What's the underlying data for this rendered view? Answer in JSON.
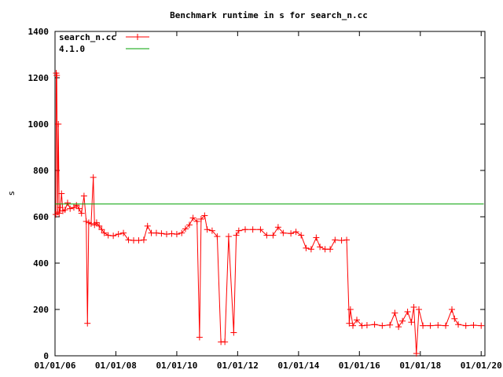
{
  "chart_data": {
    "type": "line",
    "title": "Benchmark runtime in s for search_n.cc",
    "xlabel": "",
    "ylabel": "s",
    "xlim": [
      "2006-01-01",
      "2020-02-15"
    ],
    "ylim": [
      0,
      1400
    ],
    "x_ticks": [
      "01/01/06",
      "01/01/08",
      "01/01/10",
      "01/01/12",
      "01/01/14",
      "01/01/16",
      "01/01/18",
      "01/01/20"
    ],
    "y_ticks": [
      "0",
      "200",
      "400",
      "600",
      "800",
      "1000",
      "1200",
      "1400"
    ],
    "legend": "top-left",
    "grid": false,
    "series": [
      {
        "name": "search_n.cc",
        "color": "#ff0000",
        "marker": "plus",
        "points": [
          [
            "2006-01-10",
            610
          ],
          [
            "2006-01-15",
            1220
          ],
          [
            "2006-01-22",
            1210
          ],
          [
            "2006-02-01",
            620
          ],
          [
            "2006-02-10",
            1000
          ],
          [
            "2006-02-20",
            615
          ],
          [
            "2006-03-05",
            640
          ],
          [
            "2006-03-20",
            700
          ],
          [
            "2006-04-05",
            625
          ],
          [
            "2006-05-01",
            630
          ],
          [
            "2006-06-01",
            660
          ],
          [
            "2006-07-01",
            635
          ],
          [
            "2006-08-15",
            640
          ],
          [
            "2006-09-15",
            650
          ],
          [
            "2006-10-15",
            635
          ],
          [
            "2006-11-15",
            615
          ],
          [
            "2006-12-15",
            690
          ],
          [
            "2007-01-10",
            580
          ],
          [
            "2007-01-25",
            140
          ],
          [
            "2007-02-10",
            575
          ],
          [
            "2007-03-10",
            570
          ],
          [
            "2007-04-05",
            770
          ],
          [
            "2007-04-20",
            565
          ],
          [
            "2007-05-15",
            575
          ],
          [
            "2007-06-15",
            560
          ],
          [
            "2007-07-15",
            545
          ],
          [
            "2007-08-15",
            530
          ],
          [
            "2007-10-01",
            520
          ],
          [
            "2007-12-01",
            518
          ],
          [
            "2008-02-01",
            525
          ],
          [
            "2008-04-01",
            530
          ],
          [
            "2008-06-01",
            500
          ],
          [
            "2008-08-01",
            498
          ],
          [
            "2008-10-01",
            498
          ],
          [
            "2008-12-01",
            500
          ],
          [
            "2009-01-15",
            560
          ],
          [
            "2009-03-01",
            530
          ],
          [
            "2009-05-01",
            530
          ],
          [
            "2009-07-01",
            528
          ],
          [
            "2009-09-01",
            525
          ],
          [
            "2009-11-01",
            527
          ],
          [
            "2010-01-01",
            525
          ],
          [
            "2010-03-01",
            530
          ],
          [
            "2010-04-15",
            548
          ],
          [
            "2010-06-01",
            565
          ],
          [
            "2010-07-15",
            595
          ],
          [
            "2010-09-01",
            580
          ],
          [
            "2010-10-01",
            80
          ],
          [
            "2010-10-20",
            590
          ],
          [
            "2010-12-01",
            605
          ],
          [
            "2011-01-01",
            545
          ],
          [
            "2011-03-01",
            540
          ],
          [
            "2011-05-01",
            515
          ],
          [
            "2011-06-15",
            60
          ],
          [
            "2011-08-01",
            60
          ],
          [
            "2011-09-15",
            515
          ],
          [
            "2011-11-15",
            100
          ],
          [
            "2011-12-15",
            520
          ],
          [
            "2012-01-15",
            540
          ],
          [
            "2012-04-01",
            545
          ],
          [
            "2012-07-01",
            545
          ],
          [
            "2012-10-01",
            545
          ],
          [
            "2012-12-15",
            520
          ],
          [
            "2013-03-01",
            520
          ],
          [
            "2013-05-01",
            555
          ],
          [
            "2013-07-01",
            530
          ],
          [
            "2013-10-01",
            528
          ],
          [
            "2013-12-01",
            535
          ],
          [
            "2014-02-01",
            520
          ],
          [
            "2014-04-01",
            465
          ],
          [
            "2014-06-01",
            460
          ],
          [
            "2014-08-01",
            510
          ],
          [
            "2014-09-15",
            470
          ],
          [
            "2014-11-15",
            460
          ],
          [
            "2015-01-15",
            460
          ],
          [
            "2015-03-15",
            500
          ],
          [
            "2015-06-01",
            498
          ],
          [
            "2015-08-01",
            500
          ],
          [
            "2015-09-01",
            140
          ],
          [
            "2015-09-15",
            200
          ],
          [
            "2015-10-15",
            130
          ],
          [
            "2015-12-01",
            155
          ],
          [
            "2016-02-01",
            130
          ],
          [
            "2016-04-01",
            132
          ],
          [
            "2016-07-01",
            135
          ],
          [
            "2016-10-01",
            130
          ],
          [
            "2017-01-01",
            133
          ],
          [
            "2017-03-01",
            185
          ],
          [
            "2017-04-15",
            125
          ],
          [
            "2017-06-01",
            150
          ],
          [
            "2017-08-01",
            190
          ],
          [
            "2017-09-15",
            145
          ],
          [
            "2017-10-15",
            210
          ],
          [
            "2017-11-15",
            10
          ],
          [
            "2017-12-15",
            200
          ],
          [
            "2018-02-01",
            130
          ],
          [
            "2018-05-01",
            130
          ],
          [
            "2018-08-01",
            132
          ],
          [
            "2018-11-01",
            130
          ],
          [
            "2019-01-15",
            200
          ],
          [
            "2019-02-15",
            160
          ],
          [
            "2019-04-01",
            135
          ],
          [
            "2019-07-01",
            130
          ],
          [
            "2019-10-01",
            132
          ],
          [
            "2020-01-01",
            130
          ]
        ]
      },
      {
        "name": "4.1.0",
        "color": "#00a000",
        "marker": "none",
        "points": [
          [
            "2006-01-01",
            655
          ],
          [
            "2020-02-01",
            655
          ]
        ]
      }
    ]
  }
}
